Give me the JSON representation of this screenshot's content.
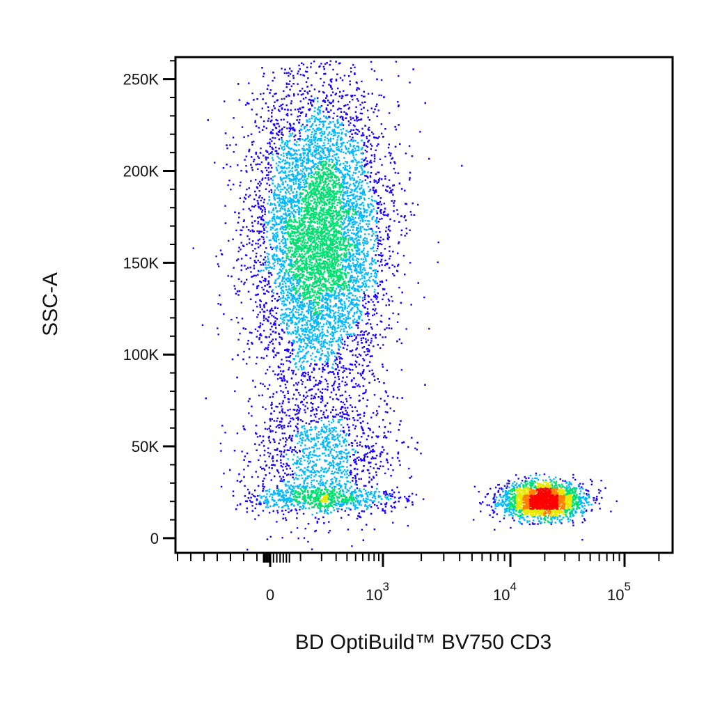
{
  "chart_data": {
    "type": "scatter",
    "subtype": "flow-cytometry-density-pseudocolor",
    "xlabel": "BD OptiBuild™ BV750 CD3",
    "ylabel": "SSC-A",
    "x_scale": "biexponential",
    "x_ticks": [
      {
        "value": 0,
        "label": "0"
      },
      {
        "value": 1000,
        "label": "10",
        "exp": "3"
      },
      {
        "value": 10000,
        "label": "10",
        "exp": "4"
      },
      {
        "value": 100000,
        "label": "10",
        "exp": "5"
      }
    ],
    "y_ticks": [
      {
        "value": 0,
        "label": "0"
      },
      {
        "value": 50000,
        "label": "50K"
      },
      {
        "value": 100000,
        "label": "100K"
      },
      {
        "value": 150000,
        "label": "150K"
      },
      {
        "value": 200000,
        "label": "200K"
      },
      {
        "value": 250000,
        "label": "250K"
      }
    ],
    "xlim": [
      -700,
      250000
    ],
    "ylim": [
      -8000,
      262000
    ],
    "grid": false,
    "legend": "none",
    "color_scale": [
      "#1a00ff",
      "#00b8ff",
      "#00e070",
      "#e8e800",
      "#ff8000",
      "#ff0000"
    ],
    "populations": [
      {
        "name": "",
        "x_center": 180,
        "x_spread": 260,
        "y_center": 165000,
        "y_spread": 42000,
        "count": 9000
      },
      {
        "name": "",
        "x_center": 200,
        "x_spread": 300,
        "y_center": 45000,
        "y_spread": 18000,
        "count": 2600
      },
      {
        "name": "",
        "x_center": 19000,
        "x_spread": 0.18,
        "y_center": 21000,
        "y_spread": 5000,
        "count": 2300
      }
    ]
  }
}
